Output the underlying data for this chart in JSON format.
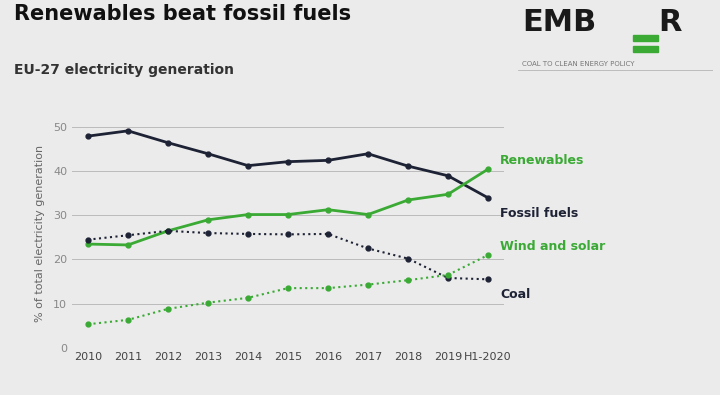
{
  "title": "Renewables beat fossil fuels",
  "subtitle": "EU-27 electricity generation",
  "ylabel": "% of total electricity generation",
  "background_color": "#ebebeb",
  "plot_bg_color": "#ebebeb",
  "years": [
    "2010",
    "2011",
    "2012",
    "2013",
    "2014",
    "2015",
    "2016",
    "2017",
    "2018",
    "2019",
    "H1-2020"
  ],
  "fossil_fuels": [
    48.0,
    49.2,
    46.5,
    44.0,
    41.3,
    42.2,
    42.5,
    44.0,
    41.2,
    39.0,
    34.0
  ],
  "renewables": [
    23.5,
    23.3,
    26.5,
    29.0,
    30.2,
    30.2,
    31.3,
    30.2,
    33.5,
    34.8,
    40.5
  ],
  "coal": [
    24.5,
    25.5,
    26.5,
    26.0,
    25.8,
    25.7,
    25.8,
    22.5,
    20.2,
    15.8,
    15.5
  ],
  "wind_solar": [
    5.3,
    6.3,
    8.8,
    10.2,
    11.3,
    13.5,
    13.5,
    14.3,
    15.3,
    16.5,
    21.0
  ],
  "fossil_color": "#1d2235",
  "renewables_color": "#3aaa35",
  "coal_color": "#1d2235",
  "wind_solar_color": "#3aaa35",
  "ylim": [
    0,
    52
  ],
  "yticks": [
    0,
    10,
    20,
    30,
    40,
    50
  ],
  "title_fontsize": 15,
  "subtitle_fontsize": 10,
  "axis_label_fontsize": 8,
  "tick_fontsize": 8,
  "annotation_fontsize": 9
}
